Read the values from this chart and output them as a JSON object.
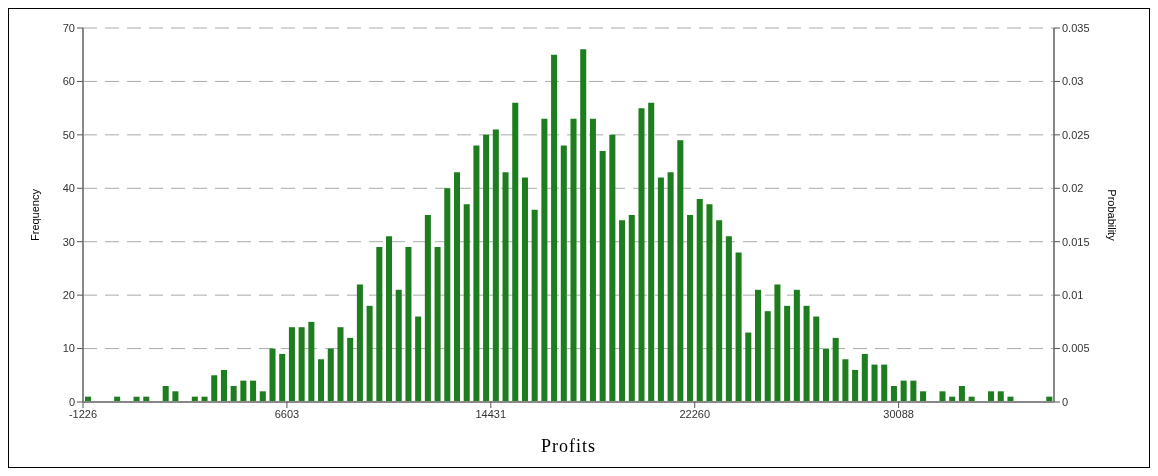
{
  "chart_data": {
    "type": "histogram",
    "xlabel": "Profits",
    "ylabel": "Frequency",
    "y2label": "Probability",
    "bins": [
      -1226,
      -853.2,
      -480.4,
      -107.6,
      265.2,
      638,
      1010.8,
      1383.6,
      1756.4,
      2129.2,
      2502,
      2874.8,
      3247.6,
      3620.4,
      3993.2,
      4366,
      4738.8,
      5111.6,
      5484.4,
      5857.2,
      6230,
      6602.8,
      6975.6,
      7348.4,
      7721.2,
      8094,
      8466.8,
      8839.6,
      9212.4,
      9585.2,
      9958,
      10330.8,
      10703.6,
      11076.4,
      11449.2,
      11822,
      12194.8,
      12567.6,
      12940.4,
      13313.2,
      13686,
      14058.8,
      14431.6,
      14804.4,
      15177.2,
      15550,
      15922.8,
      16295.6,
      16668.4,
      17041.2,
      17414,
      17786.8,
      18159.6,
      18532.4,
      18905.2,
      19278,
      19650.8,
      20023.6,
      20396.4,
      20769.2,
      21142,
      21514.8,
      21887.6,
      22260.4,
      22633.2,
      23006,
      23378.8,
      23751.6,
      24124.4,
      24497.2,
      24870,
      25242.8,
      25615.6,
      25988.4,
      26361.2,
      26734,
      27106.8,
      27479.6,
      27852.4,
      28225.2,
      28598,
      28970.8,
      29343.6,
      29716.4,
      30089.2,
      30462,
      30834.8,
      31207.6,
      31580.4,
      31953.2,
      32326,
      32698.8,
      33071.6,
      33444.4,
      33817.2,
      34190,
      34562.8,
      34935.6,
      35308.4,
      35681.2,
      36054
    ],
    "values": [
      1,
      0,
      0,
      1,
      0,
      1,
      1,
      0,
      3,
      2,
      0,
      1,
      1,
      5,
      6,
      3,
      4,
      4,
      2,
      10,
      9,
      14,
      14,
      15,
      8,
      10,
      14,
      12,
      22,
      18,
      29,
      31,
      21,
      29,
      16,
      35,
      29,
      40,
      43,
      37,
      48,
      50,
      51,
      43,
      56,
      42,
      36,
      53,
      65,
      48,
      53,
      66,
      53,
      47,
      50,
      34,
      35,
      55,
      56,
      42,
      43,
      49,
      35,
      38,
      37,
      34,
      31,
      28,
      13,
      21,
      17,
      22,
      18,
      21,
      18,
      16,
      10,
      12,
      8,
      6,
      9,
      7,
      7,
      3,
      4,
      4,
      2,
      0,
      2,
      1,
      3,
      1,
      0,
      2,
      2,
      1,
      0,
      0,
      0,
      1
    ],
    "color": "#1e7d1e",
    "xlim": [
      -1226,
      36054
    ],
    "xticks": [
      -1226,
      6603,
      14431,
      22260,
      30088
    ],
    "ylim": [
      0,
      70
    ],
    "yticks": [
      0,
      10,
      20,
      30,
      40,
      50,
      60,
      70
    ],
    "y2lim": [
      0,
      0.035
    ],
    "y2ticks": [
      0,
      0.005,
      0.01,
      0.015,
      0.02,
      0.025,
      0.03,
      0.035
    ],
    "grid": "y"
  }
}
